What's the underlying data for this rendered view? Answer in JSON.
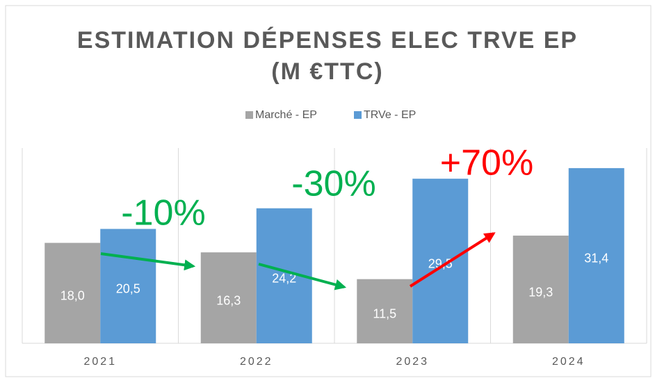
{
  "chart_data": {
    "type": "bar",
    "title": [
      "ESTIMATION DÉPENSES ELEC TRVE EP",
      "(M €TTC)"
    ],
    "categories": [
      "2021",
      "2022",
      "2023",
      "2024"
    ],
    "series": [
      {
        "name": "Marché - EP",
        "color": "#a5a5a5",
        "values": [
          18.0,
          16.3,
          11.5,
          19.3
        ],
        "value_labels": [
          "18,0",
          "16,3",
          "11,5",
          "19,3"
        ]
      },
      {
        "name": "TRVe - EP",
        "color": "#5b9bd5",
        "values": [
          20.5,
          24.2,
          29.5,
          31.4
        ],
        "value_labels": [
          "20,5",
          "24,2",
          "29,5",
          "31,4"
        ]
      }
    ],
    "ylim": [
      0,
      35
    ],
    "legend": "top",
    "annotations": [
      {
        "text": "-10%",
        "color": "#00b050"
      },
      {
        "text": "-30%",
        "color": "#00b050"
      },
      {
        "text": "+70%",
        "color": "#ff0000"
      }
    ]
  }
}
